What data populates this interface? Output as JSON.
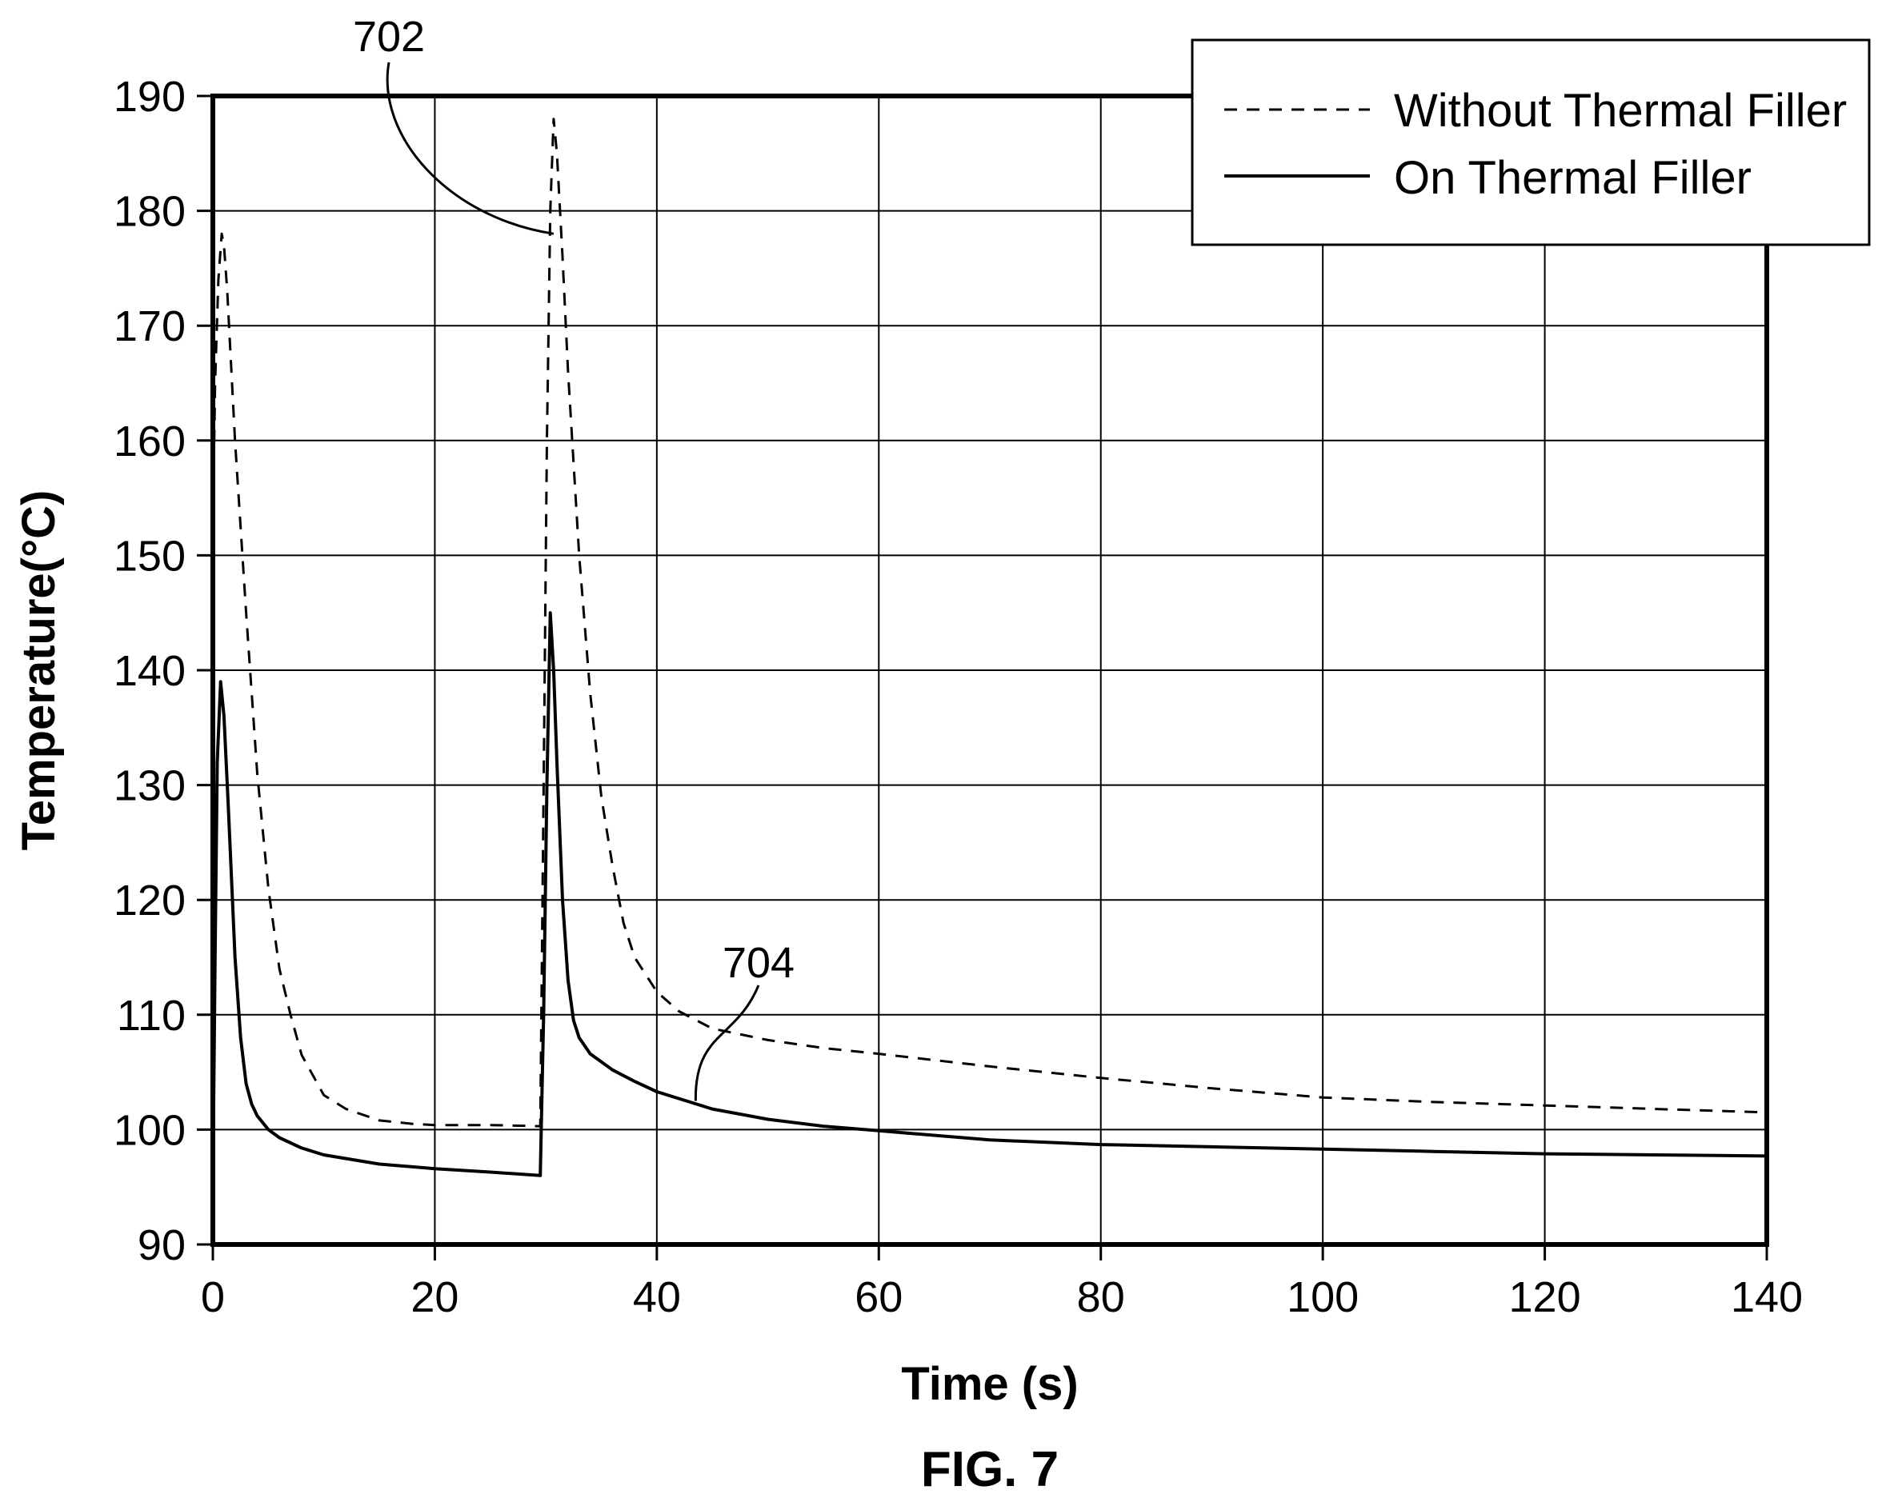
{
  "chart_data": {
    "type": "line",
    "xlabel": "Time (s)",
    "ylabel": "Temperature(°C)",
    "figure_label": "FIG. 7",
    "xlim": [
      0,
      140
    ],
    "ylim": [
      90,
      190
    ],
    "x_ticks": [
      0,
      20,
      40,
      60,
      80,
      100,
      120,
      140
    ],
    "y_ticks": [
      90,
      100,
      110,
      120,
      130,
      140,
      150,
      160,
      170,
      180,
      190
    ],
    "grid": true,
    "legend_position": "top-right",
    "series": [
      {
        "name": "Without Thermal Filler",
        "style": "dashed",
        "color": "#000000",
        "x": [
          0,
          0.2,
          0.5,
          0.8,
          1.0,
          1.3,
          2,
          3,
          4,
          5,
          6,
          7,
          8,
          10,
          12,
          15,
          18,
          20,
          25,
          29.5,
          29.8,
          30.1,
          30.4,
          30.7,
          31,
          31.5,
          32,
          33,
          34,
          35,
          36,
          37,
          38,
          40,
          42,
          45,
          50,
          55,
          60,
          70,
          80,
          90,
          100,
          110,
          120,
          130,
          140
        ],
        "y": [
          152,
          165,
          174,
          178,
          177,
          173,
          160,
          145,
          131,
          121,
          114,
          110,
          106.5,
          103,
          101.8,
          100.8,
          100.5,
          100.4,
          100.4,
          100.3,
          130,
          160,
          180,
          188,
          185,
          176,
          166,
          150,
          138,
          129,
          123,
          118,
          115,
          112,
          110.3,
          108.8,
          107.8,
          107.1,
          106.6,
          105.5,
          104.5,
          103.6,
          102.8,
          102.4,
          102.1,
          101.8,
          101.5
        ]
      },
      {
        "name": "On Thermal Filler",
        "style": "solid",
        "color": "#000000",
        "x": [
          0,
          0.2,
          0.4,
          0.7,
          1.0,
          1.4,
          2,
          2.5,
          3,
          3.5,
          4,
          5,
          6,
          8,
          10,
          15,
          20,
          25,
          29.5,
          29.8,
          30.1,
          30.4,
          30.7,
          31,
          31.5,
          32,
          32.5,
          33,
          34,
          36,
          38,
          40,
          45,
          50,
          55,
          60,
          70,
          80,
          90,
          100,
          110,
          120,
          130,
          140
        ],
        "y": [
          95,
          115,
          132,
          139,
          136,
          128,
          115,
          108,
          104,
          102.2,
          101.2,
          100,
          99.3,
          98.4,
          97.8,
          97,
          96.6,
          96.3,
          96,
          110,
          130,
          145,
          140,
          132,
          120,
          113,
          109.5,
          108,
          106.6,
          105.2,
          104.2,
          103.3,
          101.8,
          100.9,
          100.3,
          99.9,
          99.1,
          98.7,
          98.5,
          98.3,
          98.1,
          97.9,
          97.8,
          97.7
        ]
      }
    ],
    "annotations": [
      {
        "label": "702",
        "target_series": "Without Thermal Filler",
        "target_x": 30.7,
        "target_y": 178
      },
      {
        "label": "704",
        "target_series": "On Thermal Filler",
        "target_x": 43.5,
        "target_y": 102.5
      }
    ]
  }
}
